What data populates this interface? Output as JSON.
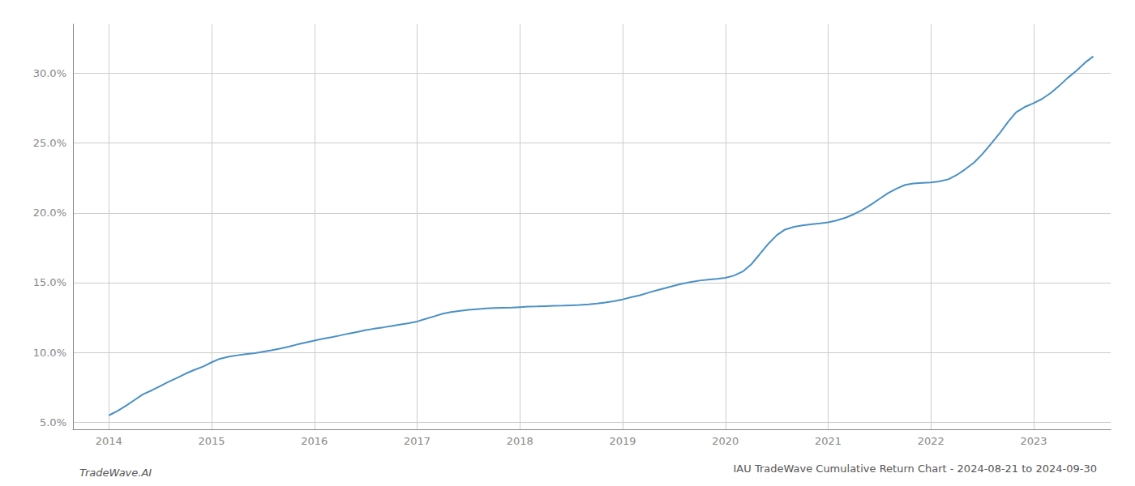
{
  "chart_data": {
    "type": "line",
    "title": "IAU TradeWave Cumulative Return Chart - 2024-08-21 to 2024-09-30",
    "annotations": [
      "TradeWave.AI"
    ],
    "x": [
      2014.0,
      2014.08,
      2014.17,
      2014.25,
      2014.33,
      2014.42,
      2014.5,
      2014.58,
      2014.67,
      2014.75,
      2014.83,
      2014.92,
      2015.0,
      2015.08,
      2015.17,
      2015.25,
      2015.33,
      2015.42,
      2015.5,
      2015.58,
      2015.67,
      2015.75,
      2015.83,
      2015.92,
      2016.0,
      2016.08,
      2016.17,
      2016.25,
      2016.33,
      2016.42,
      2016.5,
      2016.58,
      2016.67,
      2016.75,
      2016.83,
      2016.92,
      2017.0,
      2017.08,
      2017.17,
      2017.25,
      2017.33,
      2017.42,
      2017.5,
      2017.58,
      2017.67,
      2017.75,
      2017.83,
      2017.92,
      2018.0,
      2018.08,
      2018.17,
      2018.25,
      2018.33,
      2018.42,
      2018.5,
      2018.58,
      2018.67,
      2018.75,
      2018.83,
      2018.92,
      2019.0,
      2019.08,
      2019.17,
      2019.25,
      2019.33,
      2019.42,
      2019.5,
      2019.58,
      2019.67,
      2019.75,
      2019.83,
      2019.92,
      2020.0,
      2020.08,
      2020.17,
      2020.25,
      2020.33,
      2020.42,
      2020.5,
      2020.58,
      2020.67,
      2020.75,
      2020.83,
      2020.92,
      2021.0,
      2021.08,
      2021.17,
      2021.25,
      2021.33,
      2021.42,
      2021.5,
      2021.58,
      2021.67,
      2021.75,
      2021.83,
      2021.92,
      2022.0,
      2022.08,
      2022.17,
      2022.25,
      2022.33,
      2022.42,
      2022.5,
      2022.58,
      2022.67,
      2022.75,
      2022.83,
      2022.92,
      2023.0,
      2023.08,
      2023.17,
      2023.25,
      2023.33,
      2023.42,
      2023.5,
      2023.58
    ],
    "values": [
      5.5,
      5.8,
      6.2,
      6.6,
      7.0,
      7.3,
      7.6,
      7.9,
      8.2,
      8.5,
      8.75,
      9.0,
      9.3,
      9.55,
      9.7,
      9.8,
      9.88,
      9.95,
      10.05,
      10.15,
      10.28,
      10.42,
      10.57,
      10.72,
      10.85,
      10.98,
      11.1,
      11.22,
      11.35,
      11.48,
      11.6,
      11.7,
      11.8,
      11.9,
      12.0,
      12.1,
      12.22,
      12.4,
      12.6,
      12.78,
      12.9,
      12.98,
      13.05,
      13.1,
      13.15,
      13.18,
      13.2,
      13.22,
      13.25,
      13.28,
      13.3,
      13.32,
      13.34,
      13.36,
      13.38,
      13.4,
      13.44,
      13.5,
      13.58,
      13.68,
      13.8,
      13.95,
      14.1,
      14.28,
      14.45,
      14.62,
      14.78,
      14.92,
      15.05,
      15.15,
      15.22,
      15.28,
      15.35,
      15.5,
      15.8,
      16.3,
      17.0,
      17.8,
      18.4,
      18.8,
      19.0,
      19.1,
      19.18,
      19.25,
      19.32,
      19.45,
      19.65,
      19.9,
      20.2,
      20.6,
      21.0,
      21.4,
      21.75,
      22.0,
      22.1,
      22.15,
      22.18,
      22.25,
      22.4,
      22.7,
      23.1,
      23.6,
      24.2,
      24.9,
      25.7,
      26.5,
      27.2,
      27.6,
      27.85,
      28.15,
      28.6,
      29.1,
      29.65,
      30.2,
      30.75,
      31.2
    ],
    "color": "#4a90c4",
    "xlim": [
      2013.65,
      2023.75
    ],
    "xticks": [
      2014,
      2015,
      2016,
      2017,
      2018,
      2019,
      2020,
      2021,
      2022,
      2023
    ],
    "ylim": [
      4.5,
      33.5
    ],
    "yticks": [
      {
        "value": 5.0,
        "label": "5.0%"
      },
      {
        "value": 10.0,
        "label": "10.0%"
      },
      {
        "value": 15.0,
        "label": "15.0%"
      },
      {
        "value": 20.0,
        "label": "20.0%"
      },
      {
        "value": 25.0,
        "label": "25.0%"
      },
      {
        "value": 30.0,
        "label": "30.0%"
      }
    ],
    "grid": true
  }
}
